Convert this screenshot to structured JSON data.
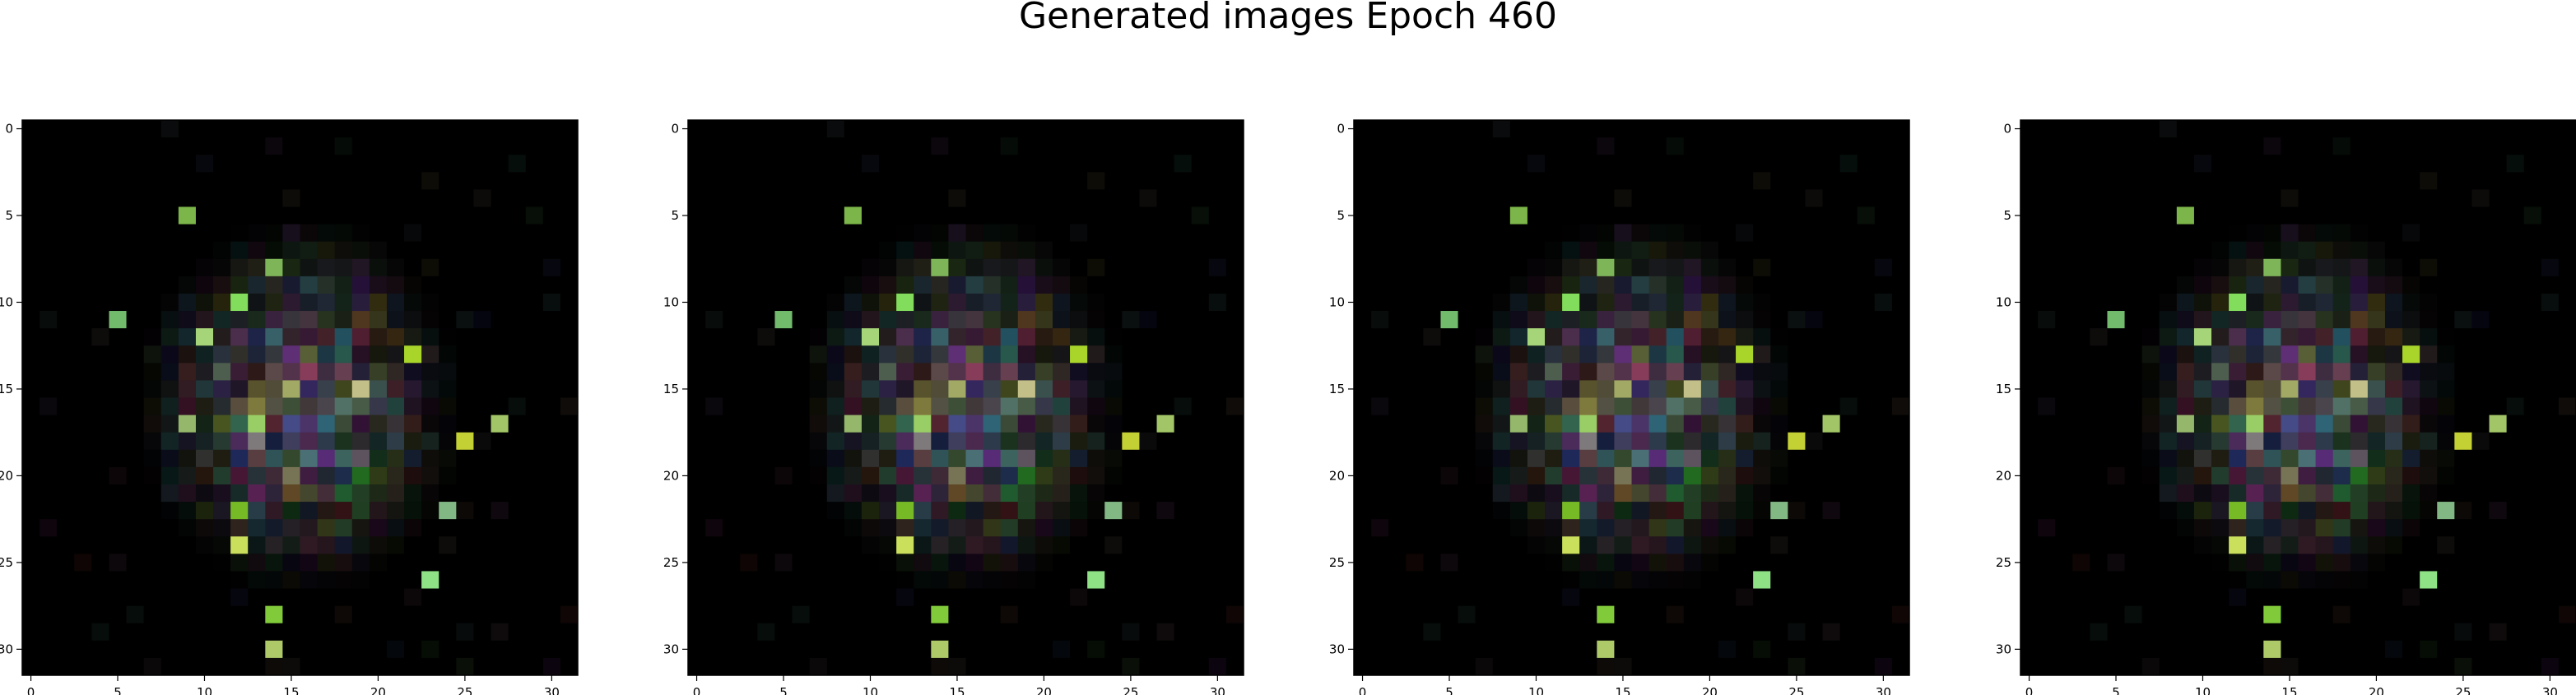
{
  "title": "Generated images Epoch 460",
  "chart_data": [
    {
      "type": "heatmap",
      "grid": [
        32,
        32
      ],
      "xticks": [
        0,
        5,
        10,
        15,
        20,
        25,
        30
      ],
      "yticks": [
        0,
        5,
        10,
        15,
        20,
        25,
        30
      ],
      "xlim": [
        -0.5,
        31.5
      ],
      "ylim": [
        31.5,
        -0.5
      ]
    },
    {
      "type": "heatmap",
      "grid": [
        32,
        32
      ],
      "xticks": [
        0,
        5,
        10,
        15,
        20,
        25,
        30
      ],
      "yticks": [
        0,
        5,
        10,
        15,
        20,
        25,
        30
      ],
      "xlim": [
        -0.5,
        31.5
      ],
      "ylim": [
        31.5,
        -0.5
      ]
    },
    {
      "type": "heatmap",
      "grid": [
        32,
        32
      ],
      "xticks": [
        0,
        5,
        10,
        15,
        20,
        25,
        30
      ],
      "yticks": [
        0,
        5,
        10,
        15,
        20,
        25,
        30
      ],
      "xlim": [
        -0.5,
        31.5
      ],
      "ylim": [
        31.5,
        -0.5
      ]
    },
    {
      "type": "heatmap",
      "grid": [
        32,
        32
      ],
      "xticks": [
        0,
        5,
        10,
        15,
        20,
        25,
        30
      ],
      "yticks": [
        0,
        5,
        10,
        15,
        20,
        25,
        30
      ],
      "xlim": [
        -0.5,
        31.5
      ],
      "ylim": [
        31.5,
        -0.5
      ]
    }
  ]
}
